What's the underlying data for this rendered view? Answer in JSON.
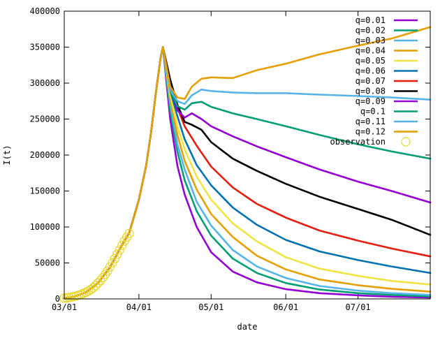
{
  "chart_data": {
    "type": "line",
    "title": "",
    "xlabel": "date",
    "ylabel": "I(t)",
    "xlim": [
      "03/01",
      "07/31"
    ],
    "ylim": [
      0,
      400000
    ],
    "x_ticks": [
      {
        "date": "03/01",
        "label": "03/01"
      },
      {
        "date": "04/01",
        "label": "04/01"
      },
      {
        "date": "05/01",
        "label": "05/01"
      },
      {
        "date": "06/01",
        "label": "06/01"
      },
      {
        "date": "07/01",
        "label": "07/01"
      }
    ],
    "y_ticks": [
      0,
      50000,
      100000,
      150000,
      200000,
      250000,
      300000,
      350000,
      400000
    ],
    "y_tick_labels": [
      "0",
      "50000",
      "100000",
      "150000",
      "200000",
      "250000",
      "300000",
      "350000",
      "400000"
    ],
    "grid": false,
    "legend_position": "top-right",
    "observation": {
      "name": "observation",
      "color": "#e5d62a",
      "x": [
        "03/01",
        "03/02",
        "03/03",
        "03/04",
        "03/05",
        "03/06",
        "03/07",
        "03/08",
        "03/09",
        "03/10",
        "03/11",
        "03/12",
        "03/13",
        "03/14",
        "03/15",
        "03/16",
        "03/17",
        "03/18",
        "03/19",
        "03/20",
        "03/21",
        "03/22",
        "03/23",
        "03/24",
        "03/25",
        "03/26",
        "03/27",
        "03/28"
      ],
      "y": [
        1000,
        1500,
        2000,
        2600,
        3300,
        4200,
        5200,
        6300,
        7600,
        9200,
        11000,
        13000,
        15500,
        18500,
        22000,
        25500,
        29500,
        34000,
        39000,
        44500,
        50000,
        56000,
        62000,
        68000,
        74500,
        80500,
        86000,
        91000
      ]
    },
    "shared_rise": {
      "x": [
        "03/01",
        "03/05",
        "03/10",
        "03/15",
        "03/20",
        "03/25",
        "03/28",
        "04/01",
        "04/04",
        "04/06",
        "04/08",
        "04/10",
        "04/11"
      ],
      "y": [
        1000,
        3000,
        9000,
        22000,
        44000,
        75000,
        92000,
        138000,
        185000,
        230000,
        285000,
        335000,
        350000
      ]
    },
    "series": [
      {
        "name": "q=0.01",
        "color": "#9400d3",
        "x": [
          "04/11",
          "04/14",
          "04/17",
          "04/20",
          "04/25",
          "05/01",
          "05/10",
          "05/20",
          "06/01",
          "06/15",
          "07/01",
          "07/15",
          "07/31"
        ],
        "y": [
          350000,
          250000,
          185000,
          145000,
          100000,
          65000,
          38000,
          23000,
          13500,
          8000,
          5000,
          3000,
          2000
        ]
      },
      {
        "name": "q=0.02",
        "color": "#009e73",
        "x": [
          "04/11",
          "04/14",
          "04/17",
          "04/20",
          "04/25",
          "05/01",
          "05/10",
          "05/20",
          "06/01",
          "06/15",
          "07/01",
          "07/15",
          "07/31"
        ],
        "y": [
          350000,
          262000,
          205000,
          165000,
          122000,
          88000,
          56000,
          36000,
          22000,
          13000,
          8000,
          5500,
          3500
        ]
      },
      {
        "name": "q=0.03",
        "color": "#56b4e9",
        "x": [
          "04/11",
          "04/14",
          "04/17",
          "04/20",
          "04/25",
          "05/01",
          "05/10",
          "05/20",
          "06/01",
          "06/15",
          "07/01",
          "07/15",
          "07/31"
        ],
        "y": [
          350000,
          270000,
          215000,
          180000,
          135000,
          102000,
          68000,
          45000,
          29000,
          18000,
          11500,
          8000,
          5500
        ]
      },
      {
        "name": "q=0.04",
        "color": "#e69f00",
        "x": [
          "04/11",
          "04/14",
          "04/17",
          "04/20",
          "04/25",
          "05/01",
          "05/10",
          "05/20",
          "06/01",
          "06/15",
          "07/01",
          "07/15",
          "07/31"
        ],
        "y": [
          350000,
          278000,
          228000,
          192000,
          152000,
          118000,
          86000,
          60000,
          41000,
          27000,
          19000,
          14000,
          10000
        ]
      },
      {
        "name": "q=0.05",
        "color": "#f0e442",
        "x": [
          "04/11",
          "04/14",
          "04/17",
          "04/20",
          "04/25",
          "05/01",
          "05/10",
          "05/20",
          "06/01",
          "06/15",
          "07/01",
          "07/15",
          "07/31"
        ],
        "y": [
          350000,
          284000,
          240000,
          208000,
          170000,
          138000,
          105000,
          80000,
          58000,
          42000,
          32000,
          25000,
          20000
        ]
      },
      {
        "name": "q=0.06",
        "color": "#0072b2",
        "x": [
          "04/11",
          "04/14",
          "04/17",
          "04/20",
          "04/25",
          "05/01",
          "05/10",
          "05/20",
          "06/01",
          "06/15",
          "07/01",
          "07/15",
          "07/31"
        ],
        "y": [
          350000,
          290000,
          254000,
          222000,
          186000,
          158000,
          127000,
          103000,
          82000,
          66000,
          54000,
          45000,
          36000
        ]
      },
      {
        "name": "q=0.07",
        "color": "#e51e10",
        "x": [
          "04/11",
          "04/14",
          "04/17",
          "04/20",
          "04/25",
          "05/01",
          "05/10",
          "05/20",
          "06/01",
          "06/15",
          "07/01",
          "07/15",
          "07/31"
        ],
        "y": [
          350000,
          296000,
          266000,
          240000,
          213000,
          184000,
          155000,
          132000,
          113000,
          95000,
          81000,
          70000,
          59000
        ]
      },
      {
        "name": "q=0.08",
        "color": "#000000",
        "x": [
          "04/11",
          "04/14",
          "04/17",
          "04/20",
          "04/23",
          "04/27",
          "05/01",
          "05/10",
          "05/20",
          "06/01",
          "06/15",
          "07/01",
          "07/15",
          "07/31"
        ],
        "y": [
          350000,
          305000,
          270000,
          246000,
          242000,
          235000,
          218000,
          195000,
          178000,
          160000,
          142000,
          125000,
          110000,
          89000
        ]
      },
      {
        "name": "q=0.09",
        "color": "#9400d3",
        "x": [
          "04/11",
          "04/14",
          "04/17",
          "04/20",
          "04/23",
          "04/27",
          "05/01",
          "05/10",
          "05/20",
          "06/01",
          "06/15",
          "07/01",
          "07/15",
          "07/31"
        ],
        "y": [
          350000,
          295000,
          262000,
          252000,
          258000,
          250000,
          240000,
          226000,
          212000,
          197000,
          180000,
          163000,
          150000,
          134000
        ]
      },
      {
        "name": "q=0.1",
        "color": "#009e73",
        "x": [
          "04/11",
          "04/14",
          "04/17",
          "04/20",
          "04/23",
          "04/27",
          "05/01",
          "05/10",
          "05/20",
          "06/01",
          "06/15",
          "07/01",
          "07/15",
          "07/31"
        ],
        "y": [
          350000,
          290000,
          268000,
          263000,
          272000,
          274000,
          267000,
          258000,
          250000,
          240000,
          228000,
          215000,
          205000,
          195000
        ]
      },
      {
        "name": "q=0.11",
        "color": "#56b4e9",
        "x": [
          "04/11",
          "04/14",
          "04/17",
          "04/20",
          "04/23",
          "04/27",
          "05/01",
          "05/10",
          "05/20",
          "06/01",
          "06/15",
          "07/01",
          "07/15",
          "07/31"
        ],
        "y": [
          350000,
          290000,
          275000,
          271000,
          283000,
          291000,
          289000,
          287000,
          286000,
          286000,
          284000,
          282000,
          280000,
          277000
        ]
      },
      {
        "name": "q=0.12",
        "color": "#e69f00",
        "x": [
          "04/11",
          "04/14",
          "04/17",
          "04/20",
          "04/23",
          "04/27",
          "05/01",
          "05/10",
          "05/20",
          "06/01",
          "06/15",
          "07/01",
          "07/15",
          "07/31"
        ],
        "y": [
          350000,
          295000,
          280000,
          278000,
          295000,
          306000,
          308000,
          307000,
          318000,
          327000,
          340000,
          352000,
          362000,
          378000
        ]
      }
    ]
  }
}
